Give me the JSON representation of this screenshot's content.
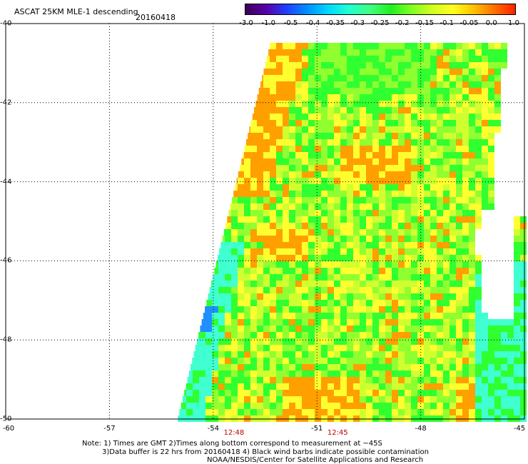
{
  "header": {
    "title": "ASCAT 25KM MLE-1 descending",
    "date": "20160418"
  },
  "colorbar": {
    "tick_labels": [
      "-3.0",
      "-1.0",
      "-0.5",
      "-0.4",
      "-0.35",
      "-0.3",
      "-0.25",
      "-0.2",
      "-0.15",
      "-0.1",
      "-0.05",
      "0.0",
      "1.0"
    ],
    "colors": [
      "#3a0058",
      "#5a00a8",
      "#2040ff",
      "#0090ff",
      "#00d8ff",
      "#20ffd0",
      "#40ff80",
      "#20f020",
      "#80ff20",
      "#d0ff20",
      "#ffff20",
      "#ffc000",
      "#ff7000",
      "#ff2000"
    ]
  },
  "map": {
    "lat_labels": [
      "-40",
      "-42",
      "-44",
      "-46",
      "-48",
      "-50"
    ],
    "lon_labels": [
      "-60",
      "-57",
      "-54",
      "-51",
      "-48",
      "-45"
    ],
    "lat_range": [
      -50,
      -40
    ],
    "lon_range": [
      -60,
      -45
    ],
    "time_labels": [
      {
        "text": "12:48",
        "lon": -53.4
      },
      {
        "text": "12:45",
        "lon": -50.4
      }
    ],
    "data_colors": {
      "cyan": "#40ffd0",
      "green": "#30ff30",
      "lightgreen": "#90ff30",
      "yellowgreen": "#d0ff30",
      "yellow": "#ffff30",
      "orange": "#ffa000",
      "blue": "#2090ff"
    }
  },
  "notes": {
    "line1": "Note: 1) Times are GMT 2)Times along bottom correspond to measurement at ~45S",
    "line2": "3)Data buffer is 22 hrs from 20160418 4) Black wind barbs indicate possible contamination",
    "line3": "NOAA/NESDIS/Center for Satellite Applications and Research"
  }
}
